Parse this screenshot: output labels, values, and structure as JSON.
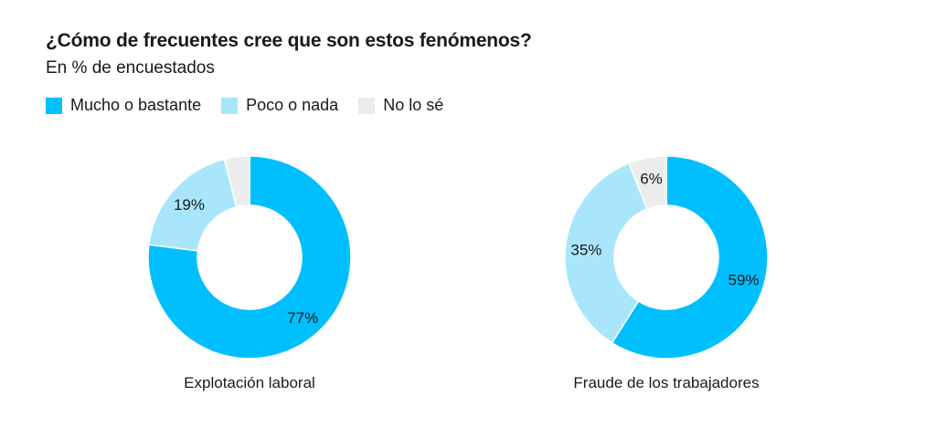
{
  "title": "¿Cómo de frecuentes cree que son estos fenómenos?",
  "subtitle": "En % de encuestados",
  "legend": [
    {
      "label": "Mucho o bastante",
      "color": "#00bfff"
    },
    {
      "label": "Poco o nada",
      "color": "#a9e6fb"
    },
    {
      "label": "No lo sé",
      "color": "#ececec"
    }
  ],
  "chart_data": [
    {
      "type": "pie",
      "variant": "donut",
      "title": "Explotación laboral",
      "categories": [
        "Mucho o bastante",
        "Poco o nada",
        "No lo sé"
      ],
      "values": [
        77,
        19,
        4
      ],
      "labels": [
        "77%",
        "19%",
        ""
      ],
      "colors": [
        "#00bfff",
        "#a9e6fb",
        "#ececec"
      ]
    },
    {
      "type": "pie",
      "variant": "donut",
      "title": "Fraude de los trabajadores",
      "categories": [
        "Mucho o bastante",
        "Poco o nada",
        "No lo sé"
      ],
      "values": [
        59,
        35,
        6
      ],
      "labels": [
        "59%",
        "35%",
        "6%"
      ],
      "colors": [
        "#00bfff",
        "#a9e6fb",
        "#ececec"
      ]
    }
  ]
}
